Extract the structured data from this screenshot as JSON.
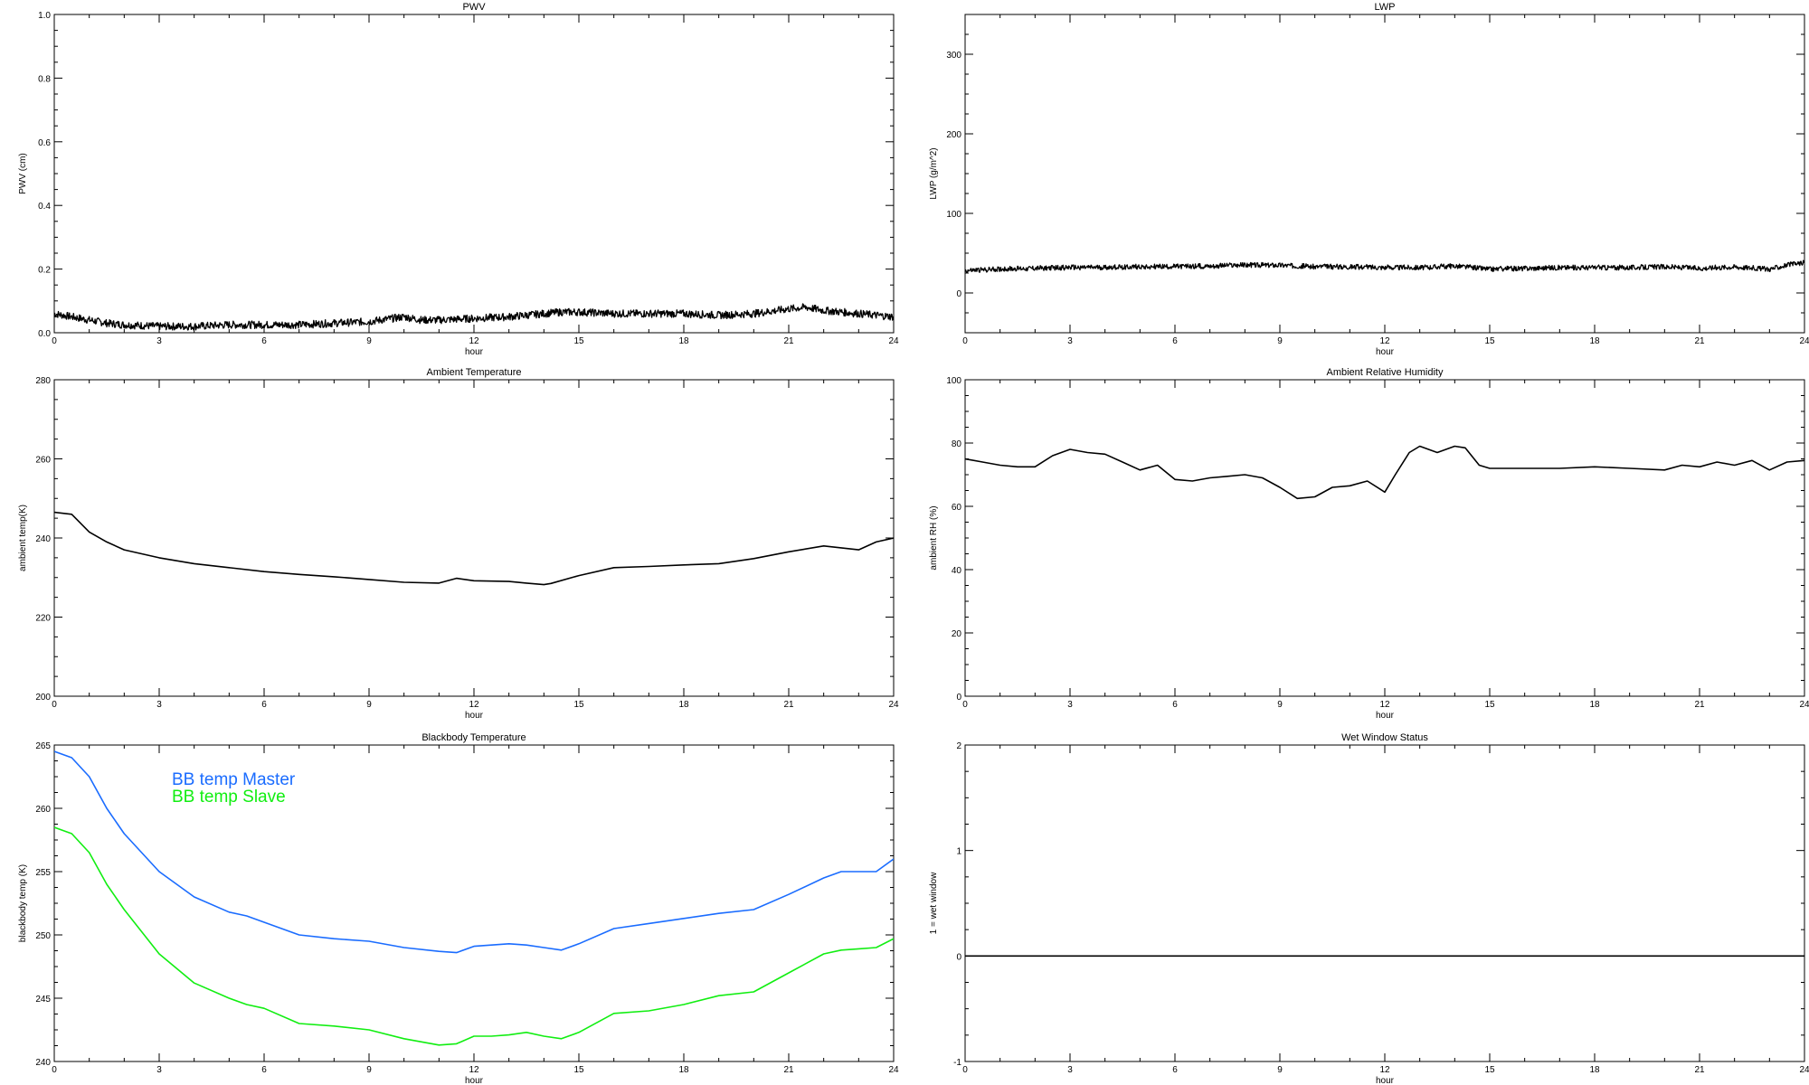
{
  "chart_data": [
    {
      "id": "pwv",
      "type": "line",
      "title": "PWV",
      "xlabel": "hour",
      "ylabel": "PWV (cm)",
      "xlim": [
        0,
        24
      ],
      "ylim": [
        0.0,
        1.0
      ],
      "xticks": [
        "0",
        "3",
        "6",
        "9",
        "12",
        "15",
        "18",
        "21",
        "24"
      ],
      "yticks": [
        "0.0",
        "0.2",
        "0.4",
        "0.6",
        "0.8",
        "1.0"
      ],
      "noisy": true,
      "series": [
        {
          "color": "#000000",
          "x": [
            0,
            0.5,
            1,
            1.5,
            2,
            3,
            4,
            5,
            6,
            7,
            8,
            9,
            10,
            10.5,
            11,
            12,
            13,
            14,
            14.5,
            15,
            16,
            17,
            18,
            19,
            20,
            21,
            21.5,
            22,
            23,
            24
          ],
          "y": [
            0.06,
            0.05,
            0.04,
            0.03,
            0.025,
            0.02,
            0.02,
            0.025,
            0.025,
            0.025,
            0.03,
            0.035,
            0.05,
            0.04,
            0.04,
            0.045,
            0.05,
            0.06,
            0.065,
            0.065,
            0.06,
            0.06,
            0.06,
            0.055,
            0.06,
            0.075,
            0.08,
            0.07,
            0.06,
            0.05
          ]
        }
      ]
    },
    {
      "id": "lwp",
      "type": "line",
      "title": "LWP",
      "xlabel": "hour",
      "ylabel": "LWP (g/m^2)",
      "xlim": [
        0,
        24
      ],
      "ylim": [
        -50,
        350
      ],
      "xticks": [
        "0",
        "3",
        "6",
        "9",
        "12",
        "15",
        "18",
        "21",
        "24"
      ],
      "yticks": [
        "0",
        "100",
        "200",
        "300"
      ],
      "noisy": true,
      "series": [
        {
          "color": "#000000",
          "x": [
            0,
            1,
            2,
            3,
            4,
            5,
            6,
            7,
            8,
            9,
            10,
            11,
            12,
            13,
            14,
            15,
            16,
            17,
            18,
            19,
            20,
            21,
            22,
            23,
            23.5,
            24
          ],
          "y": [
            28,
            30,
            31,
            32,
            32,
            33,
            33,
            34,
            35,
            35,
            33,
            33,
            32,
            32,
            34,
            30,
            31,
            32,
            32,
            32,
            33,
            31,
            33,
            30,
            35,
            38
          ]
        }
      ]
    },
    {
      "id": "ambient-temperature",
      "type": "line",
      "title": "Ambient Temperature",
      "xlabel": "hour",
      "ylabel": "ambient temp(K)",
      "xlim": [
        0,
        24
      ],
      "ylim": [
        200,
        280
      ],
      "xticks": [
        "0",
        "3",
        "6",
        "9",
        "12",
        "15",
        "18",
        "21",
        "24"
      ],
      "yticks": [
        "200",
        "220",
        "240",
        "260",
        "280"
      ],
      "noisy": false,
      "series": [
        {
          "color": "#000000",
          "x": [
            0,
            0.5,
            1,
            1.5,
            2,
            3,
            4,
            5,
            6,
            7,
            8,
            9,
            10,
            11,
            11.5,
            12,
            13,
            13.5,
            14,
            14.2,
            15,
            16,
            17,
            18,
            19,
            20,
            21,
            22,
            23,
            23.5,
            24
          ],
          "y": [
            246.5,
            246,
            241.5,
            239,
            237,
            235,
            233.5,
            232.5,
            231.5,
            230.8,
            230.2,
            229.5,
            228.8,
            228.6,
            229.8,
            229.2,
            229,
            228.6,
            228.2,
            228.5,
            230.5,
            232.5,
            232.8,
            233.2,
            233.5,
            234.8,
            236.5,
            238,
            237,
            239,
            240
          ]
        }
      ]
    },
    {
      "id": "ambient-rh",
      "type": "line",
      "title": "Ambient Relative Humidity",
      "xlabel": "hour",
      "ylabel": "ambient RH (%)",
      "xlim": [
        0,
        24
      ],
      "ylim": [
        0,
        100
      ],
      "xticks": [
        "0",
        "3",
        "6",
        "9",
        "12",
        "15",
        "18",
        "21",
        "24"
      ],
      "yticks": [
        "0",
        "20",
        "40",
        "60",
        "80",
        "100"
      ],
      "noisy": false,
      "series": [
        {
          "color": "#000000",
          "x": [
            0,
            0.5,
            1,
            1.5,
            2,
            2.5,
            3,
            3.5,
            4,
            4.5,
            5,
            5.5,
            6,
            6.5,
            7,
            7.5,
            8,
            8.5,
            9,
            9.5,
            10,
            10.5,
            11,
            11.5,
            12,
            12.3,
            12.7,
            13,
            13.5,
            14,
            14.3,
            14.7,
            15,
            16,
            17,
            18,
            19,
            20,
            20.5,
            21,
            21.5,
            22,
            22.5,
            23,
            23.5,
            24
          ],
          "y": [
            75,
            74,
            73,
            72.5,
            72.5,
            76,
            78,
            77,
            76.5,
            74,
            71.5,
            73,
            68.5,
            68,
            69,
            69.5,
            70,
            69,
            66,
            62.5,
            63,
            66,
            66.5,
            68,
            64.5,
            70,
            77,
            79,
            77,
            79,
            78.5,
            73,
            72,
            72,
            72,
            72.5,
            72,
            71.5,
            73,
            72.5,
            74,
            73,
            74.5,
            71.5,
            74,
            74.5
          ]
        }
      ]
    },
    {
      "id": "blackbody-temperature",
      "type": "line",
      "title": "Blackbody Temperature",
      "xlabel": "hour",
      "ylabel": "blackbody temp (K)",
      "xlim": [
        0,
        24
      ],
      "ylim": [
        240,
        265
      ],
      "xticks": [
        "0",
        "3",
        "6",
        "9",
        "12",
        "15",
        "18",
        "21",
        "24"
      ],
      "yticks": [
        "240",
        "245",
        "250",
        "255",
        "260",
        "265"
      ],
      "noisy": false,
      "legend": [
        "BB temp Master",
        "BB temp Slave"
      ],
      "series": [
        {
          "name": "BB temp Master",
          "color": "#1a6cff",
          "x": [
            0,
            0.5,
            1,
            1.5,
            2,
            3,
            4,
            5,
            5.5,
            6,
            7,
            8,
            9,
            10,
            11,
            11.5,
            12,
            12.5,
            13,
            13.5,
            14,
            14.5,
            15,
            16,
            17,
            18,
            19,
            20,
            21,
            22,
            22.5,
            23,
            23.5,
            24
          ],
          "y": [
            264.5,
            264,
            262.5,
            260,
            258,
            255,
            253,
            251.8,
            251.5,
            251,
            250,
            249.7,
            249.5,
            249,
            248.7,
            248.6,
            249.1,
            249.2,
            249.3,
            249.2,
            249,
            248.8,
            249.3,
            250.5,
            250.9,
            251.3,
            251.7,
            252,
            253.2,
            254.5,
            255,
            255,
            255,
            256
          ]
        },
        {
          "name": "BB temp Slave",
          "color": "#11ee11",
          "x": [
            0,
            0.5,
            1,
            1.5,
            2,
            3,
            4,
            5,
            5.5,
            6,
            7,
            8,
            9,
            10,
            11,
            11.5,
            12,
            12.5,
            13,
            13.5,
            14,
            14.5,
            15,
            16,
            17,
            18,
            19,
            20,
            21,
            22,
            22.5,
            23,
            23.5,
            24
          ],
          "y": [
            258.5,
            258,
            256.5,
            254,
            252,
            248.5,
            246.2,
            245,
            244.5,
            244.2,
            243,
            242.8,
            242.5,
            241.8,
            241.3,
            241.4,
            242,
            242,
            242.1,
            242.3,
            242,
            241.8,
            242.3,
            243.8,
            244,
            244.5,
            245.2,
            245.5,
            247,
            248.5,
            248.8,
            248.9,
            249,
            249.7
          ]
        }
      ]
    },
    {
      "id": "wet-window-status",
      "type": "line",
      "title": "Wet Window Status",
      "xlabel": "hour",
      "ylabel": "1 = wet window",
      "xlim": [
        0,
        24
      ],
      "ylim": [
        -1,
        2
      ],
      "xticks": [
        "0",
        "3",
        "6",
        "9",
        "12",
        "15",
        "18",
        "21",
        "24"
      ],
      "yticks": [
        "-1",
        "0",
        "1",
        "2"
      ],
      "noisy": false,
      "series": [
        {
          "color": "#000000",
          "x": [
            0,
            24
          ],
          "y": [
            0,
            0
          ]
        }
      ]
    }
  ]
}
